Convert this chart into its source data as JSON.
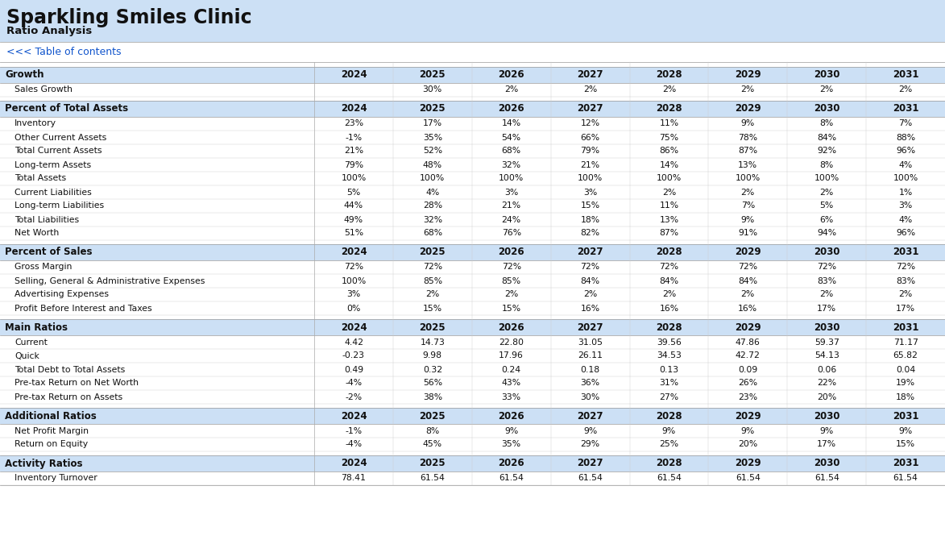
{
  "title": "Sparkling Smiles Clinic",
  "subtitle": "Ratio Analysis",
  "link_text": "<<< Table of contents",
  "years": [
    "2024",
    "2025",
    "2026",
    "2027",
    "2028",
    "2029",
    "2030",
    "2031"
  ],
  "header_bg": "#cce0f5",
  "white_bg": "#ffffff",
  "section_header_bg": "#cce0f5",
  "sections": [
    {
      "name": "Growth",
      "rows": [
        {
          "label": "Sales Growth",
          "values": [
            "",
            "30%",
            "2%",
            "2%",
            "2%",
            "2%",
            "2%",
            "2%"
          ]
        }
      ]
    },
    {
      "name": "Percent of Total Assets",
      "rows": [
        {
          "label": "Inventory",
          "values": [
            "23%",
            "17%",
            "14%",
            "12%",
            "11%",
            "9%",
            "8%",
            "7%"
          ]
        },
        {
          "label": "Other Current Assets",
          "values": [
            "-1%",
            "35%",
            "54%",
            "66%",
            "75%",
            "78%",
            "84%",
            "88%"
          ]
        },
        {
          "label": "Total Current Assets",
          "values": [
            "21%",
            "52%",
            "68%",
            "79%",
            "86%",
            "87%",
            "92%",
            "96%"
          ]
        },
        {
          "label": "Long-term Assets",
          "values": [
            "79%",
            "48%",
            "32%",
            "21%",
            "14%",
            "13%",
            "8%",
            "4%"
          ]
        },
        {
          "label": "Total Assets",
          "values": [
            "100%",
            "100%",
            "100%",
            "100%",
            "100%",
            "100%",
            "100%",
            "100%"
          ]
        },
        {
          "label": "Current Liabilities",
          "values": [
            "5%",
            "4%",
            "3%",
            "3%",
            "2%",
            "2%",
            "2%",
            "1%"
          ]
        },
        {
          "label": "Long-term Liabilities",
          "values": [
            "44%",
            "28%",
            "21%",
            "15%",
            "11%",
            "7%",
            "5%",
            "3%"
          ]
        },
        {
          "label": "Total Liabilities",
          "values": [
            "49%",
            "32%",
            "24%",
            "18%",
            "13%",
            "9%",
            "6%",
            "4%"
          ]
        },
        {
          "label": "Net Worth",
          "values": [
            "51%",
            "68%",
            "76%",
            "82%",
            "87%",
            "91%",
            "94%",
            "96%"
          ]
        }
      ]
    },
    {
      "name": "Percent of Sales",
      "rows": [
        {
          "label": "Gross Margin",
          "values": [
            "72%",
            "72%",
            "72%",
            "72%",
            "72%",
            "72%",
            "72%",
            "72%"
          ]
        },
        {
          "label": "Selling, General & Administrative Expenses",
          "values": [
            "100%",
            "85%",
            "85%",
            "84%",
            "84%",
            "84%",
            "83%",
            "83%"
          ]
        },
        {
          "label": "Advertising Expenses",
          "values": [
            "3%",
            "2%",
            "2%",
            "2%",
            "2%",
            "2%",
            "2%",
            "2%"
          ]
        },
        {
          "label": "Profit Before Interest and Taxes",
          "values": [
            "0%",
            "15%",
            "15%",
            "16%",
            "16%",
            "16%",
            "17%",
            "17%"
          ]
        }
      ]
    },
    {
      "name": "Main Ratios",
      "rows": [
        {
          "label": "Current",
          "values": [
            "4.42",
            "14.73",
            "22.80",
            "31.05",
            "39.56",
            "47.86",
            "59.37",
            "71.17"
          ]
        },
        {
          "label": "Quick",
          "values": [
            "-0.23",
            "9.98",
            "17.96",
            "26.11",
            "34.53",
            "42.72",
            "54.13",
            "65.82"
          ]
        },
        {
          "label": "Total Debt to Total Assets",
          "values": [
            "0.49",
            "0.32",
            "0.24",
            "0.18",
            "0.13",
            "0.09",
            "0.06",
            "0.04"
          ]
        },
        {
          "label": "Pre-tax Return on Net Worth",
          "values": [
            "-4%",
            "56%",
            "43%",
            "36%",
            "31%",
            "26%",
            "22%",
            "19%"
          ]
        },
        {
          "label": "Pre-tax Return on Assets",
          "values": [
            "-2%",
            "38%",
            "33%",
            "30%",
            "27%",
            "23%",
            "20%",
            "18%"
          ]
        }
      ]
    },
    {
      "name": "Additional Ratios",
      "rows": [
        {
          "label": "Net Profit Margin",
          "values": [
            "-1%",
            "8%",
            "9%",
            "9%",
            "9%",
            "9%",
            "9%",
            "9%"
          ]
        },
        {
          "label": "Return on Equity",
          "values": [
            "-4%",
            "45%",
            "35%",
            "29%",
            "25%",
            "20%",
            "17%",
            "15%"
          ]
        }
      ]
    },
    {
      "name": "Activity Ratios",
      "rows": [
        {
          "label": "Inventory Turnover",
          "values": [
            "78.41",
            "61.54",
            "61.54",
            "61.54",
            "61.54",
            "61.54",
            "61.54",
            "61.54"
          ]
        }
      ]
    }
  ]
}
